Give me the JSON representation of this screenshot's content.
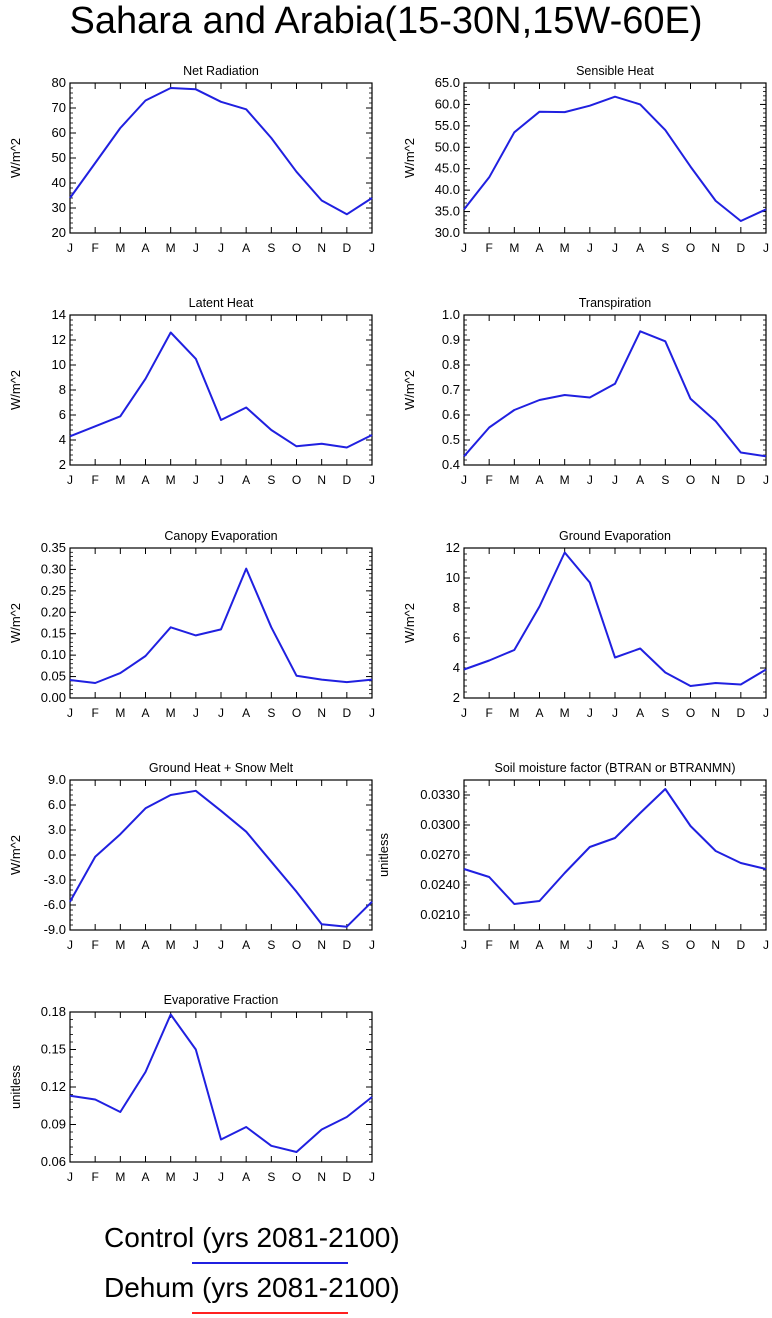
{
  "title": "Sahara and Arabia(15-30N,15W-60E)",
  "month_labels": [
    "J",
    "F",
    "M",
    "A",
    "M",
    "J",
    "J",
    "A",
    "S",
    "O",
    "N",
    "D",
    "J"
  ],
  "legend": [
    {
      "label": "Control (yrs 2081-2100)",
      "color": "#2020e0"
    },
    {
      "label": "Dehum (yrs 2081-2100)",
      "color": "#ff2020"
    }
  ],
  "chart_data": [
    {
      "type": "line",
      "title": "Net Radiation",
      "ylabel": "W/m^2",
      "ylim": [
        20,
        80
      ],
      "yticks": [
        "20",
        "30",
        "40",
        "50",
        "60",
        "70",
        "80"
      ],
      "ytick_values": [
        20,
        30,
        40,
        50,
        60,
        70,
        80
      ],
      "categories": [
        "J",
        "F",
        "M",
        "A",
        "M",
        "J",
        "J",
        "A",
        "S",
        "O",
        "N",
        "D",
        "J"
      ],
      "series": [
        {
          "values": [
            34,
            48,
            62,
            73,
            78,
            77.5,
            72.5,
            69.5,
            58,
            44.5,
            33,
            27.5,
            34
          ]
        }
      ]
    },
    {
      "type": "line",
      "title": "Sensible Heat",
      "ylabel": "W/m^2",
      "ylim": [
        30,
        65
      ],
      "yticks": [
        "30.0",
        "35.0",
        "40.0",
        "45.0",
        "50.0",
        "55.0",
        "60.0",
        "65.0"
      ],
      "ytick_values": [
        30,
        35,
        40,
        45,
        50,
        55,
        60,
        65
      ],
      "categories": [
        "J",
        "F",
        "M",
        "A",
        "M",
        "J",
        "J",
        "A",
        "S",
        "O",
        "N",
        "D",
        "J"
      ],
      "series": [
        {
          "values": [
            35.5,
            43,
            53.5,
            58.3,
            58.2,
            59.7,
            61.8,
            60,
            54,
            45.5,
            37.5,
            32.8,
            35.5
          ]
        }
      ]
    },
    {
      "type": "line",
      "title": "Latent Heat",
      "ylabel": "W/m^2",
      "ylim": [
        2,
        14
      ],
      "yticks": [
        "2",
        "4",
        "6",
        "8",
        "10",
        "12",
        "14"
      ],
      "ytick_values": [
        2,
        4,
        6,
        8,
        10,
        12,
        14
      ],
      "categories": [
        "J",
        "F",
        "M",
        "A",
        "M",
        "J",
        "J",
        "A",
        "S",
        "O",
        "N",
        "D",
        "J"
      ],
      "series": [
        {
          "values": [
            4.3,
            5.1,
            5.9,
            8.9,
            12.6,
            10.5,
            5.6,
            6.6,
            4.8,
            3.5,
            3.7,
            3.4,
            4.4
          ]
        }
      ]
    },
    {
      "type": "line",
      "title": "Transpiration",
      "ylabel": "W/m^2",
      "ylim": [
        0.4,
        1.0
      ],
      "yticks": [
        "0.4",
        "0.5",
        "0.6",
        "0.7",
        "0.8",
        "0.9",
        "1.0"
      ],
      "ytick_values": [
        0.4,
        0.5,
        0.6,
        0.7,
        0.8,
        0.9,
        1.0
      ],
      "categories": [
        "J",
        "F",
        "M",
        "A",
        "M",
        "J",
        "J",
        "A",
        "S",
        "O",
        "N",
        "D",
        "J"
      ],
      "series": [
        {
          "values": [
            0.435,
            0.55,
            0.62,
            0.66,
            0.68,
            0.67,
            0.725,
            0.935,
            0.895,
            0.665,
            0.575,
            0.45,
            0.435
          ]
        }
      ]
    },
    {
      "type": "line",
      "title": "Canopy Evaporation",
      "ylabel": "W/m^2",
      "ylim": [
        0,
        0.35
      ],
      "yticks": [
        "0.00",
        "0.05",
        "0.10",
        "0.15",
        "0.20",
        "0.25",
        "0.30",
        "0.35"
      ],
      "ytick_values": [
        0,
        0.05,
        0.1,
        0.15,
        0.2,
        0.25,
        0.3,
        0.35
      ],
      "categories": [
        "J",
        "F",
        "M",
        "A",
        "M",
        "J",
        "J",
        "A",
        "S",
        "O",
        "N",
        "D",
        "J"
      ],
      "series": [
        {
          "values": [
            0.042,
            0.035,
            0.058,
            0.098,
            0.165,
            0.146,
            0.16,
            0.302,
            0.165,
            0.052,
            0.043,
            0.037,
            0.043
          ]
        }
      ]
    },
    {
      "type": "line",
      "title": "Ground Evaporation",
      "ylabel": "W/m^2",
      "ylim": [
        2,
        12
      ],
      "yticks": [
        "2",
        "4",
        "6",
        "8",
        "10",
        "12"
      ],
      "ytick_values": [
        2,
        4,
        6,
        8,
        10,
        12
      ],
      "categories": [
        "J",
        "F",
        "M",
        "A",
        "M",
        "J",
        "J",
        "A",
        "S",
        "O",
        "N",
        "D",
        "J"
      ],
      "series": [
        {
          "values": [
            3.9,
            4.5,
            5.2,
            8.1,
            11.7,
            9.7,
            4.7,
            5.3,
            3.7,
            2.8,
            3.0,
            2.9,
            3.9
          ]
        }
      ]
    },
    {
      "type": "line",
      "title": "Ground Heat + Snow Melt",
      "ylabel": "W/m^2",
      "ylim": [
        -9,
        9
      ],
      "yticks": [
        "-9.0",
        "-6.0",
        "-3.0",
        "0.0",
        "3.0",
        "6.0",
        "9.0"
      ],
      "ytick_values": [
        -9,
        -6,
        -3,
        0,
        3,
        6,
        9
      ],
      "categories": [
        "J",
        "F",
        "M",
        "A",
        "M",
        "J",
        "J",
        "A",
        "S",
        "O",
        "N",
        "D",
        "J"
      ],
      "series": [
        {
          "values": [
            -5.6,
            -0.2,
            2.5,
            5.6,
            7.2,
            7.7,
            5.3,
            2.8,
            -0.8,
            -4.4,
            -8.3,
            -8.6,
            -5.6
          ]
        }
      ]
    },
    {
      "type": "line",
      "title": "Soil moisture factor (BTRAN or BTRANMN)",
      "ylabel": "unitless",
      "ylim": [
        0.0195,
        0.0345
      ],
      "yticks": [
        "0.0210",
        "0.0240",
        "0.0270",
        "0.0300",
        "0.0330"
      ],
      "ytick_values": [
        0.021,
        0.024,
        0.027,
        0.03,
        0.033
      ],
      "categories": [
        "J",
        "F",
        "M",
        "A",
        "M",
        "J",
        "J",
        "A",
        "S",
        "O",
        "N",
        "D",
        "J"
      ],
      "series": [
        {
          "values": [
            0.0256,
            0.0248,
            0.0221,
            0.0224,
            0.0252,
            0.0278,
            0.0287,
            0.0312,
            0.0336,
            0.0299,
            0.0274,
            0.0262,
            0.0256
          ]
        }
      ]
    },
    {
      "type": "line",
      "title": "Evaporative Fraction",
      "ylabel": "unitless",
      "ylim": [
        0.06,
        0.18
      ],
      "yticks": [
        "0.06",
        "0.09",
        "0.12",
        "0.15",
        "0.18"
      ],
      "ytick_values": [
        0.06,
        0.09,
        0.12,
        0.15,
        0.18
      ],
      "categories": [
        "J",
        "F",
        "M",
        "A",
        "M",
        "J",
        "J",
        "A",
        "S",
        "O",
        "N",
        "D",
        "J"
      ],
      "series": [
        {
          "values": [
            0.113,
            0.11,
            0.1,
            0.132,
            0.178,
            0.15,
            0.078,
            0.088,
            0.073,
            0.068,
            0.086,
            0.096,
            0.112
          ]
        }
      ]
    }
  ]
}
